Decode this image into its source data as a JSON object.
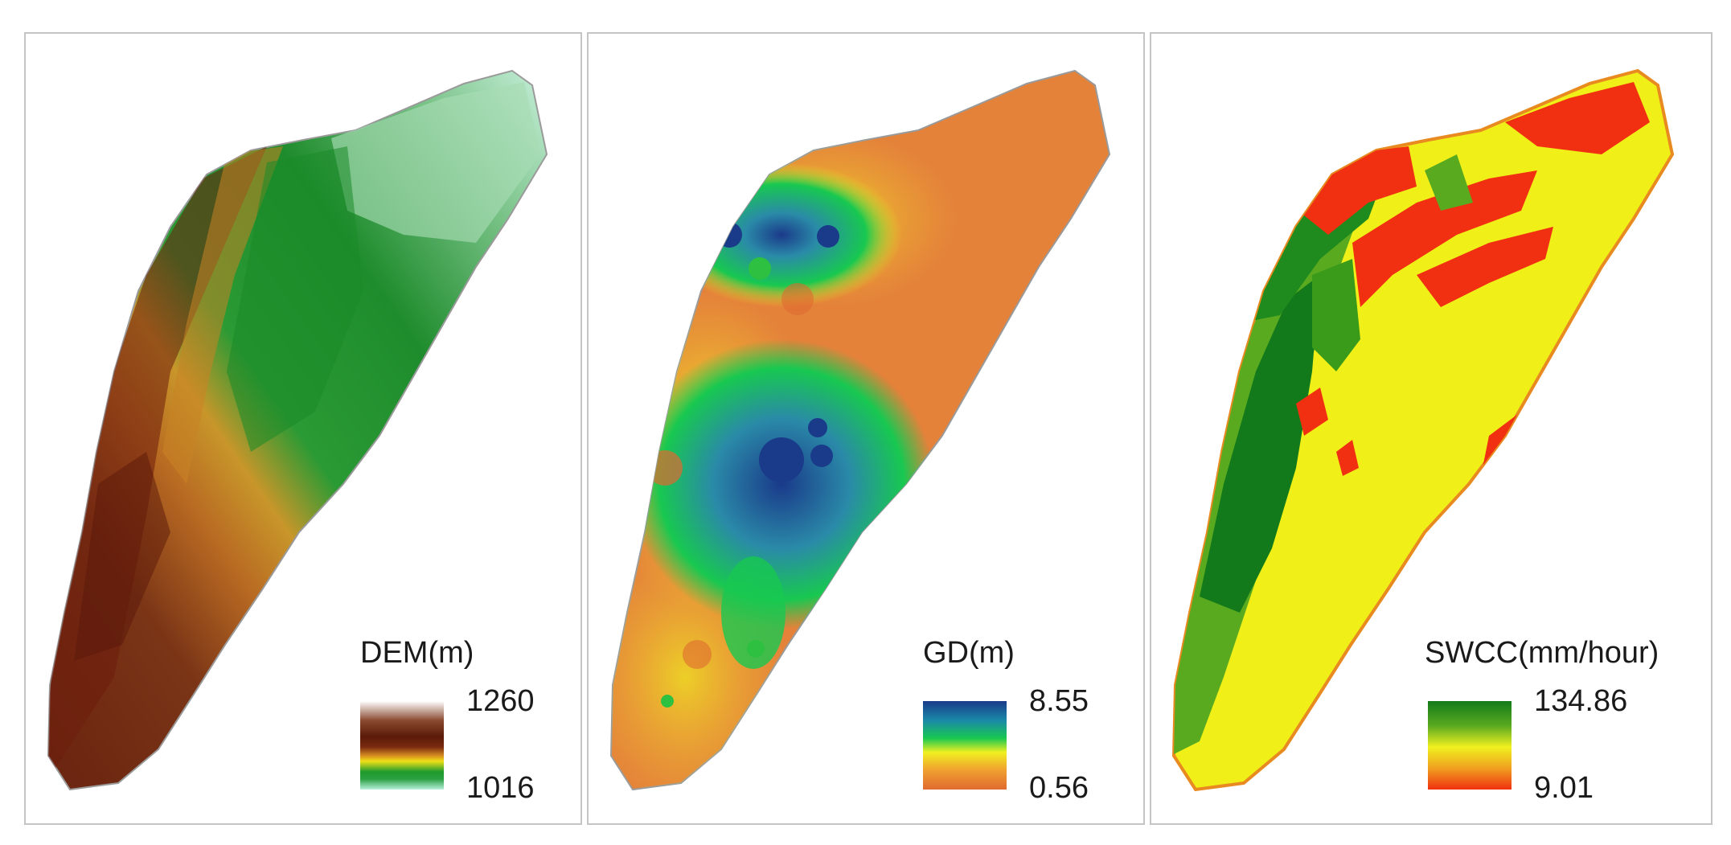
{
  "panels": [
    {
      "id": "dem",
      "legend_title": "DEM(m)",
      "max_label": "1260",
      "min_label": "1016",
      "ramp_colors": [
        "#ffffff",
        "#7a2a12",
        "#5a1a08",
        "#c87a20",
        "#f2e018",
        "#1e9b2c",
        "#b8f0dc"
      ]
    },
    {
      "id": "gd",
      "legend_title": "GD(m)",
      "max_label": "8.55",
      "min_label": "0.56",
      "ramp_colors": [
        "#1a3a8a",
        "#1ea0a0",
        "#18c850",
        "#f0f020",
        "#f0a030",
        "#e06a30"
      ]
    },
    {
      "id": "swcc",
      "legend_title": "SWCC(mm/hour)",
      "max_label": "134.86",
      "min_label": "9.01",
      "ramp_colors": [
        "#127a1a",
        "#5aaa20",
        "#f0f020",
        "#f0a020",
        "#f03010"
      ]
    }
  ]
}
